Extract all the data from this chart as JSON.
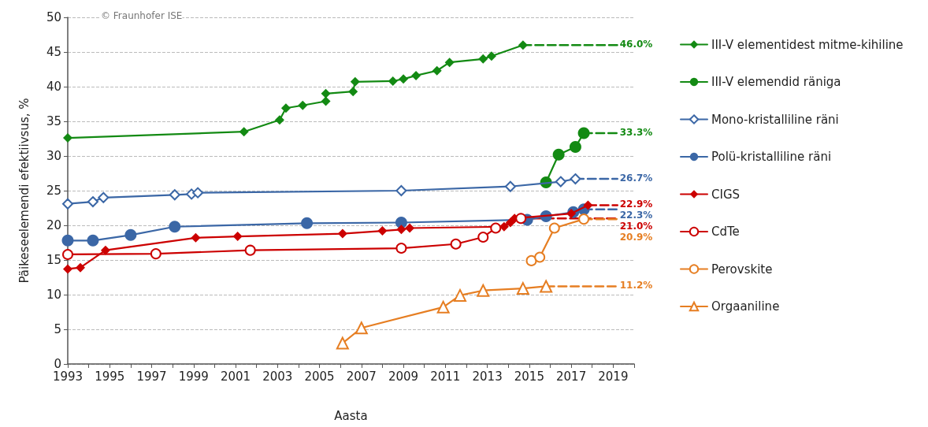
{
  "chart_data": {
    "type": "line",
    "xlabel": "Aasta",
    "ylabel": "Päikeseelemendi efektiivsus, %",
    "annotations": [
      "© Fraunhofer ISE"
    ],
    "xlim": [
      1993,
      2020
    ],
    "xticks": [
      1993,
      {
        "value": 1994,
        "label": null
      },
      1995,
      {
        "value": 1996,
        "label": null
      },
      1997,
      {
        "value": 1998,
        "label": null
      },
      1999,
      {
        "value": 2000,
        "label": null
      },
      2001,
      {
        "value": 2002,
        "label": null
      },
      2003,
      {
        "value": 2004,
        "label": null
      },
      2005,
      {
        "value": 2006,
        "label": null
      },
      2007,
      {
        "value": 2008,
        "label": null
      },
      2009,
      {
        "value": 2010,
        "label": null
      },
      2011,
      {
        "value": 2012,
        "label": null
      },
      2013,
      {
        "value": 2014,
        "label": null
      },
      2015,
      {
        "value": 2016,
        "label": null
      },
      2017,
      {
        "value": 2018,
        "label": null
      },
      2019,
      {
        "value": 2020,
        "label": null
      }
    ],
    "ylim": [
      0,
      50
    ],
    "yticks": [
      0,
      5,
      10,
      15,
      20,
      25,
      30,
      35,
      40,
      45,
      50
    ],
    "grid": "y",
    "legend": "right",
    "line_style": "solid",
    "series": [
      {
        "name": "III-V elementidest mitme-kihiline",
        "color": "#138a13",
        "marker": "diamond",
        "x": [
          1993,
          2001.4,
          2003.1,
          2003.4,
          2004.2,
          2005.3,
          2005.3,
          2006.6,
          2006.7,
          2008.5,
          2009.0,
          2009.6,
          2010.6,
          2011.2,
          2012.8,
          2013.2,
          2014.7
        ],
        "values": [
          32.6,
          33.5,
          35.2,
          36.9,
          37.3,
          37.9,
          39.0,
          39.3,
          40.7,
          40.8,
          41.1,
          41.6,
          42.3,
          43.5,
          44.0,
          44.4,
          46.0
        ]
      },
      {
        "name": "III-V elemendid räniga",
        "color": "#138a13",
        "marker": "circle",
        "x": [
          2015.8,
          2016.4,
          2017.2,
          2017.6
        ],
        "values": [
          26.2,
          30.2,
          31.3,
          33.3
        ]
      },
      {
        "name": "Mono-kristalliline räni",
        "color": "#3b67a6",
        "marker": "diamond-open",
        "x": [
          1993,
          1994.2,
          1994.7,
          1998.1,
          1998.9,
          1999.2,
          2008.9,
          2014.1,
          2016.5,
          2017.2
        ],
        "values": [
          23.1,
          23.4,
          24.0,
          24.4,
          24.5,
          24.7,
          25.0,
          25.6,
          26.3,
          26.7
        ]
      },
      {
        "name": "Polü-kristalliline räni",
        "color": "#3b67a6",
        "marker": "circle",
        "x": [
          1993,
          1994.2,
          1996,
          1998.1,
          2004.4,
          2008.9,
          2014.9,
          2015.8,
          2017.1,
          2017.6
        ],
        "values": [
          17.8,
          17.8,
          18.6,
          19.8,
          20.3,
          20.4,
          20.8,
          21.3,
          21.9,
          22.3
        ]
      },
      {
        "name": "CIGS",
        "color": "#cc0000",
        "marker": "diamond",
        "x": [
          1993,
          1993.6,
          1994.8,
          1999.1,
          2001.1,
          2006.1,
          2008.0,
          2008.9,
          2009.3,
          2013.8,
          2014.1,
          2014.3,
          2017.0,
          2017.8
        ],
        "values": [
          13.7,
          13.9,
          16.4,
          18.2,
          18.4,
          18.8,
          19.2,
          19.4,
          19.6,
          19.8,
          20.4,
          21.0,
          21.7,
          22.9
        ]
      },
      {
        "name": "CdTe",
        "color": "#cc0000",
        "marker": "circle-open",
        "x": [
          1993,
          1997.2,
          2001.7,
          2008.9,
          2011.5,
          2012.8,
          2013.4,
          2014.6
        ],
        "values": [
          15.8,
          15.9,
          16.4,
          16.7,
          17.3,
          18.3,
          19.6,
          21.0
        ]
      },
      {
        "name": "Perovskite",
        "color": "#e67e22",
        "marker": "circle-open",
        "x": [
          2015.1,
          2015.5,
          2016.2,
          2017.6
        ],
        "values": [
          14.9,
          15.4,
          19.6,
          20.9
        ]
      },
      {
        "name": "Orgaaniline",
        "color": "#e67e22",
        "marker": "triangle-open",
        "x": [
          2006.1,
          2007.0,
          2010.9,
          2011.7,
          2012.8,
          2014.7,
          2015.8
        ],
        "values": [
          3.0,
          5.2,
          8.2,
          9.9,
          10.6,
          10.9,
          11.2
        ]
      },
      {
        "color": "#138a13",
        "marker": "none",
        "line_style": "dashed",
        "x": [
          2014.7,
          2019.2
        ],
        "values": [
          46.0,
          46.0
        ],
        "value_labels": [
          null,
          "46.0%"
        ]
      },
      {
        "color": "#138a13",
        "marker": "none",
        "line_style": "dashed",
        "x": [
          2017.6,
          2019.2
        ],
        "values": [
          33.3,
          33.3
        ],
        "value_labels": [
          null,
          "33.3%"
        ]
      },
      {
        "color": "#3b67a6",
        "marker": "none",
        "line_style": "dashed",
        "x": [
          2017.2,
          2019.2
        ],
        "values": [
          26.7,
          26.7
        ],
        "value_labels": [
          null,
          "26.7%"
        ]
      },
      {
        "color": "#cc0000",
        "marker": "none",
        "line_style": "dashed",
        "x": [
          2017.8,
          2019.2
        ],
        "values": [
          22.9,
          22.9
        ],
        "value_labels": [
          null,
          "22.9%"
        ]
      },
      {
        "color": "#3b67a6",
        "marker": "none",
        "line_style": "dashed",
        "x": [
          2017.6,
          2019.2
        ],
        "values": [
          22.3,
          22.3
        ],
        "value_labels": [
          null,
          "22.3%"
        ]
      },
      {
        "color": "#cc0000",
        "marker": "none",
        "line_style": "dashed",
        "x": [
          2014.6,
          2019.2
        ],
        "values": [
          21.0,
          21.0
        ],
        "value_labels": [
          null,
          "21.0%"
        ]
      },
      {
        "color": "#e67e22",
        "marker": "none",
        "line_style": "dashed",
        "x": [
          2017.6,
          2019.2
        ],
        "values": [
          20.9,
          20.9
        ],
        "value_labels": [
          null,
          "20.9%"
        ]
      },
      {
        "color": "#e67e22",
        "marker": "none",
        "line_style": "dashed",
        "x": [
          2015.8,
          2019.2
        ],
        "values": [
          11.2,
          11.2
        ],
        "value_labels": [
          null,
          "11.2%"
        ]
      }
    ]
  }
}
